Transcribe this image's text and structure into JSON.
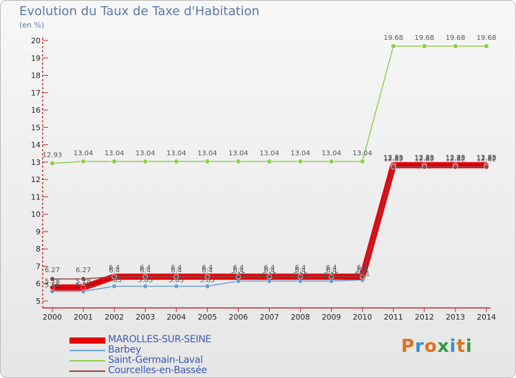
{
  "title": "Evolution du Taux de Taxe d'Habitation",
  "subtitle": "(en %)",
  "logo": {
    "text": "Proxiti",
    "colors": [
      "#e07020",
      "#3a8fd0",
      "#e07020",
      "#2e9e3e",
      "#3a8fd0",
      "#e07020",
      "#2e9e3e"
    ]
  },
  "chart_data": {
    "type": "line",
    "title": "Evolution du Taux de Taxe d'Habitation",
    "ylabel": "(en %)",
    "xlabel": "",
    "x": [
      "2000",
      "2001",
      "2002",
      "2003",
      "2004",
      "2005",
      "2006",
      "2007",
      "2008",
      "2009",
      "2010",
      "2011",
      "2012",
      "2013",
      "2014"
    ],
    "ylim": [
      5,
      20
    ],
    "yticks": [
      "5",
      "6",
      "7",
      "8",
      "9",
      "10",
      "11",
      "12",
      "13",
      "14",
      "15",
      "16",
      "17",
      "18",
      "19",
      "20"
    ],
    "series": [
      {
        "name": "MAROLLES-SUR-SEINE",
        "color": "#e8000c",
        "values": [
          5.78,
          5.78,
          6.4,
          6.4,
          6.4,
          6.4,
          6.4,
          6.4,
          6.4,
          6.4,
          6.4,
          12.82,
          12.82,
          12.82,
          12.82
        ],
        "labels": [
          "5.78",
          "5.78",
          "6.4",
          "6.4",
          "6.4",
          "6.4",
          "6.4",
          "6.4",
          "6.4",
          "6.4",
          "6.4",
          "12.82",
          "12.82",
          "12.82",
          "12.82"
        ]
      },
      {
        "name": "Barbey",
        "color": "#6aa2d2",
        "values": [
          5.56,
          5.56,
          5.85,
          5.85,
          5.85,
          5.85,
          6.15,
          6.15,
          6.15,
          6.15,
          6.21,
          12.88,
          12.88,
          12.88,
          12.88
        ],
        "labels": [
          "5.56",
          "5.56",
          "5.85",
          "5.85",
          "5.85",
          "5.85",
          "6.15",
          "6.15",
          "6.15",
          "6.15",
          "6.21",
          "12.88",
          "12.88",
          "12.88",
          "12.88"
        ]
      },
      {
        "name": "Saint-Germain-Laval",
        "color": "#8fd04a",
        "values": [
          12.93,
          13.04,
          13.04,
          13.04,
          13.04,
          13.04,
          13.04,
          13.04,
          13.04,
          13.04,
          13.04,
          19.68,
          19.68,
          19.68,
          19.68
        ],
        "labels": [
          "12.93",
          "13.04",
          "13.04",
          "13.04",
          "13.04",
          "13.04",
          "13.04",
          "13.04",
          "13.04",
          "13.04",
          "13.04",
          "19.68",
          "19.68",
          "19.68",
          "19.68"
        ]
      },
      {
        "name": "Courcelles-en-Bassée",
        "color": "#8a4a4a",
        "values": [
          6.27,
          6.27,
          6.4,
          6.4,
          6.4,
          6.4,
          6.4,
          6.4,
          6.4,
          6.4,
          6.4,
          12.73,
          12.73,
          12.73,
          12.73
        ],
        "labels": [
          "6.27",
          "6.27",
          "6.4",
          "6.4",
          "6.4",
          "6.4",
          "6.4",
          "6.4",
          "6.4",
          "6.4",
          "6.4",
          "12.73",
          "12.73",
          "12.73",
          "12.73"
        ]
      }
    ]
  }
}
